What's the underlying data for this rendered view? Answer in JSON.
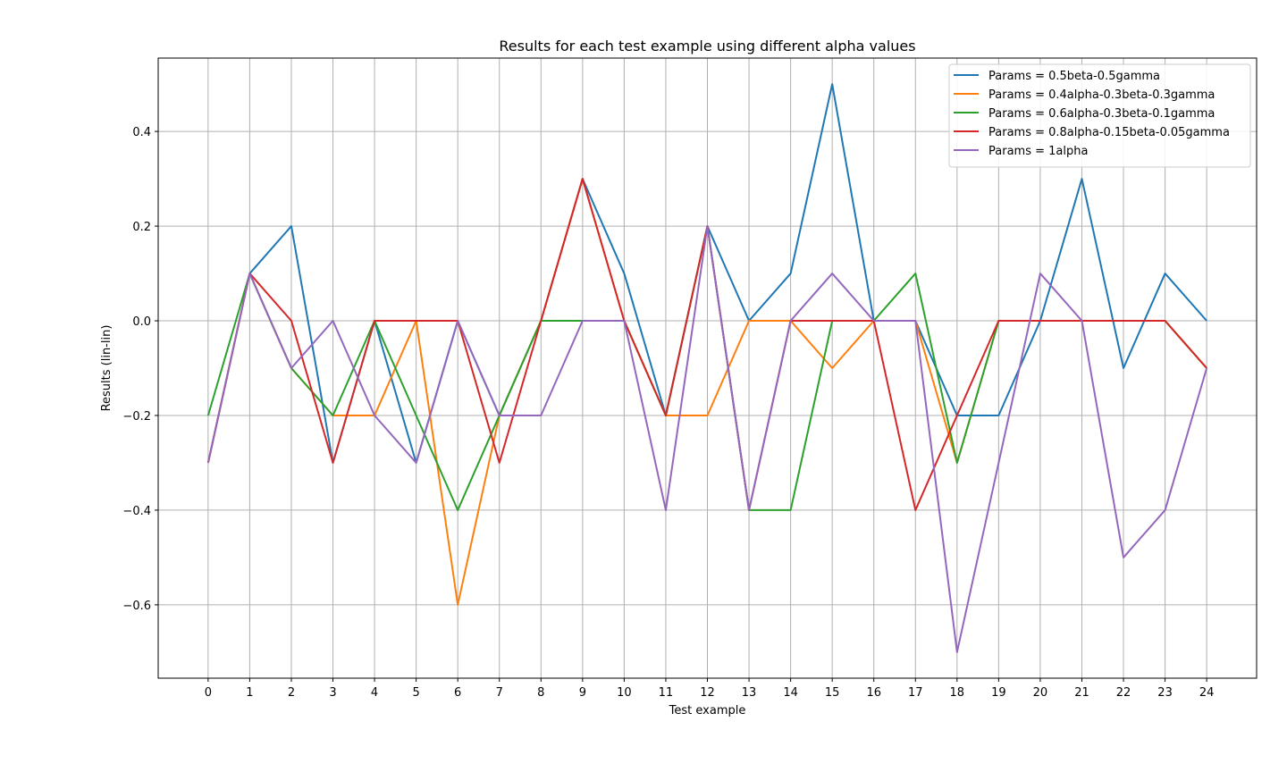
{
  "chart_data": {
    "type": "line",
    "title": "Results for each test example using different alpha values",
    "xlabel": "Test example",
    "ylabel": "Results (lin-lin)",
    "x": [
      0,
      1,
      2,
      3,
      4,
      5,
      6,
      7,
      8,
      9,
      10,
      11,
      12,
      13,
      14,
      15,
      16,
      17,
      18,
      19,
      20,
      21,
      22,
      23,
      24
    ],
    "xlim": [
      -1.2,
      25.2
    ],
    "ylim": [
      -0.755,
      0.555
    ],
    "yticks": [
      -0.6,
      -0.4,
      -0.2,
      0.0,
      0.2,
      0.4
    ],
    "ytick_labels": [
      "−0.6",
      "−0.4",
      "−0.2",
      "0.0",
      "0.2",
      "0.4"
    ],
    "grid": true,
    "legend_position": "top-right",
    "series": [
      {
        "name": "Params = 0.5beta-0.5gamma",
        "color": "#1f77b4",
        "values": [
          -0.3,
          0.1,
          0.2,
          -0.3,
          0.0,
          -0.3,
          0.0,
          -0.2,
          0.0,
          0.3,
          0.1,
          -0.2,
          0.2,
          0.0,
          0.1,
          0.5,
          0.0,
          0.0,
          -0.2,
          -0.2,
          0.0,
          0.3,
          -0.1,
          0.1,
          0.0
        ]
      },
      {
        "name": "Params = 0.4alpha-0.3beta-0.3gamma",
        "color": "#ff7f0e",
        "values": [
          -0.3,
          0.1,
          -0.1,
          -0.2,
          -0.2,
          0.0,
          -0.6,
          -0.2,
          0.0,
          0.3,
          0.0,
          -0.2,
          -0.2,
          0.0,
          0.0,
          -0.1,
          0.0,
          0.0,
          -0.3,
          0.0,
          0.0,
          0.0,
          0.0,
          0.0,
          -0.1
        ]
      },
      {
        "name": "Params = 0.6alpha-0.3beta-0.1gamma",
        "color": "#2ca02c",
        "values": [
          -0.2,
          0.1,
          -0.1,
          -0.2,
          0.0,
          -0.2,
          -0.4,
          -0.2,
          0.0,
          0.0,
          0.0,
          -0.2,
          0.2,
          -0.4,
          -0.4,
          0.0,
          0.0,
          0.1,
          -0.3,
          0.0,
          0.0,
          0.0,
          0.0,
          0.0,
          -0.1
        ]
      },
      {
        "name": "Params = 0.8alpha-0.15beta-0.05gamma",
        "color": "#d62728",
        "values": [
          -0.3,
          0.1,
          0.0,
          -0.3,
          0.0,
          0.0,
          0.0,
          -0.3,
          0.0,
          0.3,
          0.0,
          -0.2,
          0.2,
          -0.4,
          0.0,
          0.0,
          0.0,
          -0.4,
          -0.2,
          0.0,
          0.0,
          0.0,
          0.0,
          0.0,
          -0.1
        ]
      },
      {
        "name": "Params = 1alpha",
        "color": "#9467bd",
        "values": [
          -0.3,
          0.1,
          -0.1,
          0.0,
          -0.2,
          -0.3,
          0.0,
          -0.2,
          -0.2,
          0.0,
          0.0,
          -0.4,
          0.2,
          -0.4,
          0.0,
          0.1,
          0.0,
          0.0,
          -0.7,
          -0.3,
          0.1,
          0.0,
          -0.5,
          -0.4,
          -0.1
        ]
      }
    ]
  }
}
